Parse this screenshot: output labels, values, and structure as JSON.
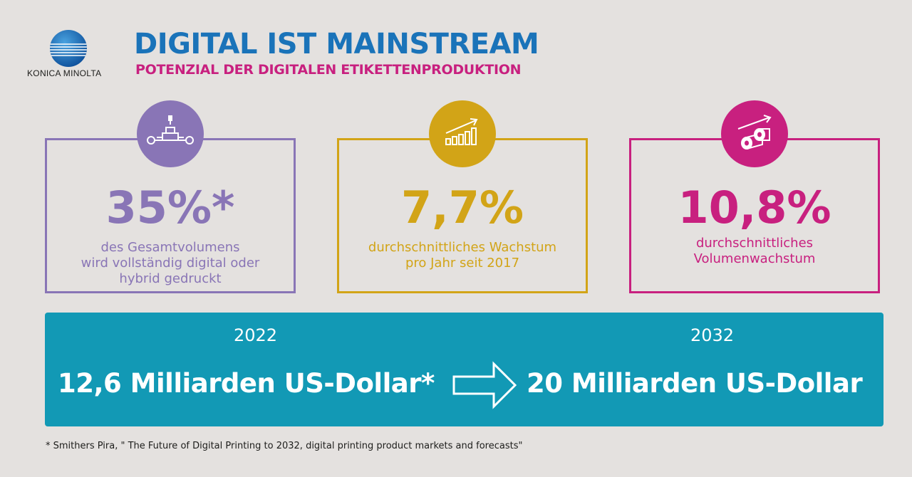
{
  "logo": {
    "text": "KONICA MINOLTA",
    "icon": "globe-logo-icon",
    "color": "#1a73b9"
  },
  "header": {
    "title": "DIGITAL IST MAINSTREAM",
    "subtitle": "POTENZIAL DER DIGITALEN ETIKETTENPRODUKTION",
    "title_color": "#1a73b9",
    "subtitle_color": "#c8207f"
  },
  "cards": [
    {
      "icon": "printing-press-icon",
      "value": "35%*",
      "line1": "des Gesamtvolumens",
      "line2": "wird vollständig digital oder",
      "line3": "hybrid gedruckt",
      "color": "#8975b6"
    },
    {
      "icon": "growth-chart-icon",
      "value": "7,7%",
      "line1": "durchschnittliches Wachstum",
      "line2": "pro Jahr seit 2017",
      "color": "#d2a417"
    },
    {
      "icon": "label-rolls-icon",
      "value": "10,8%",
      "line1": "durchschnittliches",
      "line2": "Volumenwachstum",
      "color": "#c8207f"
    }
  ],
  "banner": {
    "year_from": "2022",
    "year_to": "2032",
    "amount_from": "12,6 Milliarden US-Dollar*",
    "amount_to": "20 Milliarden US-Dollar",
    "arrow_icon": "right-arrow-icon",
    "color": "#1299b5"
  },
  "footnote": "* Smithers Pira, \" The Future of Digital Printing to 2032, digital printing product markets and forecasts\""
}
